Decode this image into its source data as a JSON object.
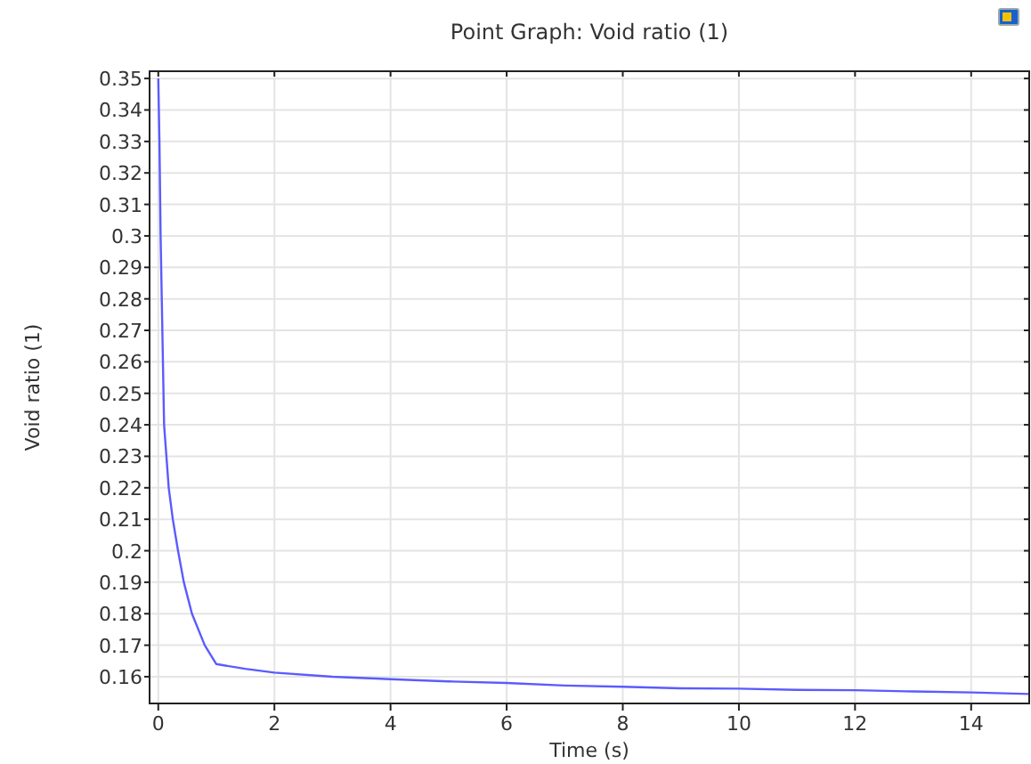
{
  "chart_data": {
    "type": "line",
    "title": "Point Graph: Void ratio (1)",
    "xlabel": "Time (s)",
    "ylabel": "Void ratio (1)",
    "series": [
      {
        "color": "#5b5bff",
        "x": [
          0,
          0.02,
          0.04,
          0.06,
          0.08,
          0.1,
          0.14,
          0.18,
          0.25,
          0.34,
          0.44,
          0.58,
          0.8,
          1.0,
          1.5,
          2,
          3,
          4,
          5,
          6,
          7,
          8,
          9,
          10,
          11,
          12,
          13,
          14,
          15
        ],
        "values": [
          0.35,
          0.33,
          0.3,
          0.28,
          0.26,
          0.24,
          0.23,
          0.22,
          0.21,
          0.2,
          0.19,
          0.18,
          0.17,
          0.164,
          0.1625,
          0.1613,
          0.16,
          0.1592,
          0.1585,
          0.158,
          0.1572,
          0.1568,
          0.1563,
          0.1562,
          0.1558,
          0.1557,
          0.1553,
          0.155,
          0.1545
        ]
      }
    ],
    "xlim": [
      -0.15,
      15
    ],
    "ylim": [
      0.1515,
      0.3523
    ],
    "xticks": [
      0,
      2,
      4,
      6,
      8,
      10,
      12,
      14
    ],
    "yticks": [
      0.16,
      0.17,
      0.18,
      0.19,
      0.2,
      0.21,
      0.22,
      0.23,
      0.24,
      0.25,
      0.26,
      0.27,
      0.28,
      0.29,
      0.3,
      0.31,
      0.32,
      0.33,
      0.34,
      0.35
    ],
    "grid": true,
    "marker": "none",
    "line_style": "solid"
  }
}
